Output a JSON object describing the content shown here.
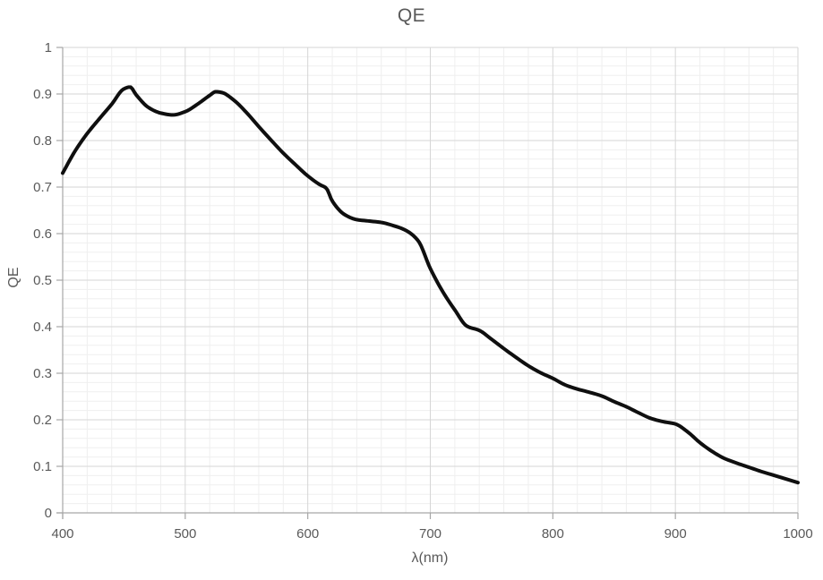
{
  "chart": {
    "title": "QE",
    "x_axis": {
      "label": "λ(nm)",
      "ticks": [
        400,
        500,
        600,
        700,
        800,
        900,
        1000
      ],
      "tick_labels": [
        "400",
        "500",
        "600",
        "700",
        "800",
        "900",
        "1000"
      ],
      "minor_step": 20
    },
    "y_axis": {
      "label": "QE",
      "ticks": [
        0,
        0.1,
        0.2,
        0.3,
        0.4,
        0.5,
        0.6,
        0.7,
        0.8,
        0.9,
        1
      ],
      "tick_labels": [
        "0",
        "0.1",
        "0.2",
        "0.3",
        "0.4",
        "0.5",
        "0.6",
        "0.7",
        "0.8",
        "0.9",
        "1"
      ],
      "minor_step": 0.02
    },
    "colors": {
      "curve": "#0f0f0f",
      "grid_major": "#d6d6d6",
      "grid_minor": "#efefef",
      "axis": "#a6a6a6",
      "text": "#595959",
      "background": "#ffffff"
    }
  },
  "chart_data": {
    "type": "line",
    "title": "QE",
    "xlabel": "λ(nm)",
    "ylabel": "QE",
    "xlim": [
      400,
      1000
    ],
    "ylim": [
      0,
      1
    ],
    "grid": "major and minor gridlines on both axes",
    "legend": "none",
    "series": [
      {
        "name": "QE",
        "x": [
          400,
          410,
          420,
          430,
          440,
          450,
          455,
          460,
          470,
          480,
          490,
          500,
          510,
          520,
          525,
          530,
          540,
          550,
          560,
          570,
          580,
          590,
          600,
          610,
          615,
          620,
          630,
          640,
          650,
          660,
          670,
          680,
          690,
          700,
          710,
          720,
          730,
          740,
          750,
          760,
          770,
          780,
          790,
          800,
          810,
          820,
          830,
          840,
          850,
          860,
          870,
          880,
          890,
          900,
          910,
          920,
          930,
          940,
          950,
          960,
          970,
          980,
          990,
          1000
        ],
        "y": [
          0.73,
          0.777,
          0.815,
          0.847,
          0.878,
          0.911,
          0.915,
          0.898,
          0.871,
          0.859,
          0.855,
          0.862,
          0.878,
          0.897,
          0.905,
          0.903,
          0.886,
          0.86,
          0.83,
          0.801,
          0.773,
          0.748,
          0.724,
          0.705,
          0.698,
          0.67,
          0.641,
          0.63,
          0.627,
          0.624,
          0.617,
          0.607,
          0.585,
          0.525,
          0.476,
          0.436,
          0.401,
          0.392,
          0.373,
          0.353,
          0.334,
          0.316,
          0.301,
          0.289,
          0.275,
          0.266,
          0.259,
          0.251,
          0.239,
          0.228,
          0.215,
          0.203,
          0.196,
          0.191,
          0.174,
          0.151,
          0.132,
          0.117,
          0.107,
          0.098,
          0.089,
          0.081,
          0.073,
          0.065
        ]
      }
    ]
  }
}
